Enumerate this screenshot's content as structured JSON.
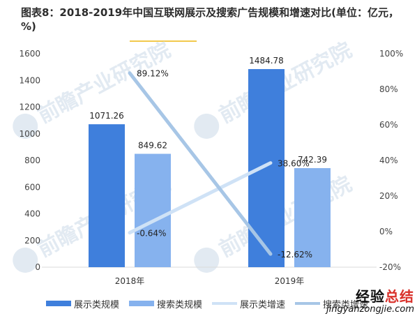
{
  "title": "图表8：2018-2019年中国互联网展示及搜索广告规模和增速对比(单位：亿元，%)",
  "colors": {
    "display_scale": "#3f7fdc",
    "search_scale": "#86b2ee",
    "display_growth": "#cfe2f6",
    "search_growth": "#a7c6e6",
    "watermark": "#dfe8f1"
  },
  "watermark_text": "前瞻产业研究院",
  "chart_data": {
    "type": "bar",
    "categories": [
      "2018年",
      "2019年"
    ],
    "series": [
      {
        "name": "展示类规模",
        "type": "bar",
        "axis": "left",
        "values": [
          1071.26,
          1484.78
        ],
        "labels": [
          "1071.26",
          "1484.78"
        ]
      },
      {
        "name": "搜索类规模",
        "type": "bar",
        "axis": "left",
        "values": [
          849.62,
          742.39
        ],
        "labels": [
          "849.62",
          "742.39"
        ]
      },
      {
        "name": "展示类增速",
        "type": "line",
        "axis": "right",
        "values": [
          -0.64,
          38.6
        ],
        "labels": [
          "-0.64%",
          "38.60%"
        ]
      },
      {
        "name": "搜索类增速",
        "type": "line",
        "axis": "right",
        "values": [
          89.12,
          -12.62
        ],
        "labels": [
          "89.12%",
          "-12.62%"
        ]
      }
    ],
    "y_left": {
      "min": 0,
      "max": 1600,
      "ticks": [
        0,
        200,
        400,
        600,
        800,
        1000,
        1200,
        1400,
        1600
      ]
    },
    "y_right": {
      "min": -20,
      "max": 100,
      "ticks": [
        -20,
        0,
        20,
        40,
        60,
        80,
        100
      ],
      "tick_labels": [
        "-20%",
        "0%",
        "20%",
        "40%",
        "60%",
        "80%",
        "100%"
      ]
    },
    "grid": false,
    "legend_position": "bottom"
  },
  "brand": {
    "cn_black": "经验",
    "cn_red": "总结",
    "url": "jingyanzongjie.com"
  }
}
